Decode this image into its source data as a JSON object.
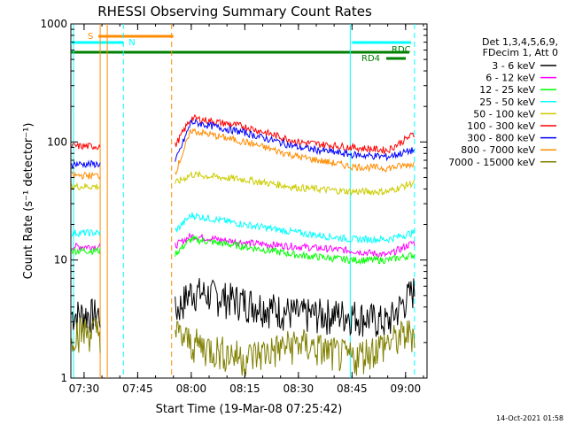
{
  "chart_data": {
    "type": "line",
    "title": "RHESSI Observing Summary Count Rates",
    "xlabel": "Start Time (19-Mar-08 07:25:42)",
    "ylabel": "Count Rate (s⁻¹ detector⁻¹)",
    "y_scale": "log",
    "ylim": [
      1,
      1000
    ],
    "xlim_minutes": [
      7.3,
      9.05
    ],
    "x_ticks": [
      "07:30",
      "07:45",
      "08:00",
      "08:15",
      "08:30",
      "08:45",
      "09:00"
    ],
    "y_ticks": [
      "1",
      "10",
      "100",
      "1000"
    ],
    "legend_header": [
      "Det 1,3,4,5,6,9,",
      "FDecim 1, Att 0"
    ],
    "grid": false,
    "legend_position": "right",
    "series": [
      {
        "name": "3 - 6 keV",
        "color": "#000000",
        "x": [
          7.43,
          7.55,
          8.0,
          8.15,
          8.3,
          8.45,
          8.55,
          9.02
        ],
        "values": [
          3.5,
          3.5,
          5.5,
          4.5,
          3.5,
          3.5,
          3.0,
          5.5
        ]
      },
      {
        "name": "6 - 12 keV",
        "color": "#ff00ff",
        "x": [
          7.43,
          7.55,
          8.0,
          8.15,
          8.3,
          8.45,
          8.55,
          9.02
        ],
        "values": [
          13,
          13,
          16,
          14,
          13,
          12,
          11,
          14
        ]
      },
      {
        "name": "12 - 25 keV",
        "color": "#00ff00",
        "x": [
          7.43,
          7.55,
          8.0,
          8.15,
          8.3,
          8.45,
          8.55,
          9.02
        ],
        "values": [
          12,
          11,
          15,
          13,
          11,
          10,
          10,
          11
        ]
      },
      {
        "name": "25 - 50 keV",
        "color": "#00ffff",
        "x": [
          7.43,
          7.55,
          8.0,
          8.15,
          8.3,
          8.45,
          8.55,
          9.02
        ],
        "values": [
          17,
          17,
          24,
          20,
          17,
          15,
          15,
          17
        ]
      },
      {
        "name": "50 - 100 keV",
        "color": "#cccc00",
        "x": [
          7.43,
          7.55,
          8.0,
          8.15,
          8.3,
          8.45,
          8.55,
          9.02
        ],
        "values": [
          42,
          44,
          53,
          48,
          41,
          38,
          38,
          45
        ]
      },
      {
        "name": "100 - 300 keV",
        "color": "#ff0000",
        "x": [
          7.43,
          7.55,
          8.0,
          8.15,
          8.3,
          8.45,
          8.55,
          9.02
        ],
        "values": [
          92,
          88,
          160,
          135,
          100,
          90,
          85,
          115
        ]
      },
      {
        "name": "300 - 800 keV",
        "color": "#0000ff",
        "x": [
          7.43,
          7.55,
          8.0,
          8.15,
          8.3,
          8.45,
          8.55,
          9.02
        ],
        "values": [
          65,
          62,
          148,
          120,
          90,
          78,
          75,
          85
        ]
      },
      {
        "name": "800 - 7000 keV",
        "color": "#ff8c00",
        "x": [
          7.43,
          7.55,
          8.0,
          8.15,
          8.3,
          8.45,
          8.55,
          9.02
        ],
        "values": [
          52,
          50,
          125,
          100,
          75,
          62,
          60,
          65
        ]
      },
      {
        "name": "7000 - 15000 keV",
        "color": "#808000",
        "x": [
          7.43,
          7.55,
          8.0,
          8.15,
          8.3,
          8.45,
          8.55,
          9.02
        ],
        "values": [
          2.5,
          2.5,
          2.0,
          1.5,
          2.0,
          1.5,
          2.0,
          2.5
        ]
      }
    ],
    "annotations": [
      {
        "label": "S",
        "color": "#ff8c00"
      },
      {
        "label": "N",
        "color": "#00ffff"
      },
      {
        "label": "RDC",
        "color": "#008000"
      },
      {
        "label": "RD4",
        "color": "#008000"
      }
    ]
  },
  "footer_timestamp": "14-Oct-2021 01:58"
}
